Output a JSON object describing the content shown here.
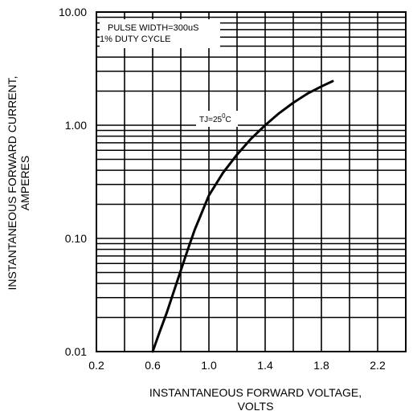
{
  "chart_data": {
    "type": "line",
    "xlabel_lines": [
      "INSTANTANEOUS FORWARD VOLTAGE,",
      "VOLTS"
    ],
    "ylabel_lines": [
      "INSTANTANEOUS FORWARD CURRENT,",
      "AMPERES"
    ],
    "x_ticks": [
      "0.2",
      "0.6",
      "1.0",
      "1.4",
      "1.8",
      "2.2"
    ],
    "y_ticks": [
      "10.00",
      "1.00",
      "0.10",
      "0.01"
    ],
    "xlim": [
      0.2,
      2.4
    ],
    "ylim": [
      0.01,
      10
    ],
    "y_scale": "log",
    "grid": true,
    "annotations": {
      "pulse": "PULSE WIDTH=300uS",
      "duty": "1% DUTY CYCLE",
      "tj_main": "TJ=25",
      "tj_sup": "0",
      "tj_unit": "C"
    },
    "series": [
      {
        "x": [
          0.6,
          0.65,
          0.7,
          0.75,
          0.8,
          0.85,
          0.9,
          0.95,
          1.0,
          1.1,
          1.2,
          1.3,
          1.4,
          1.5,
          1.6,
          1.7,
          1.8,
          1.88
        ],
        "y": [
          0.01,
          0.015,
          0.022,
          0.034,
          0.052,
          0.08,
          0.12,
          0.17,
          0.24,
          0.38,
          0.55,
          0.76,
          1.0,
          1.28,
          1.58,
          1.9,
          2.2,
          2.45
        ]
      }
    ]
  }
}
